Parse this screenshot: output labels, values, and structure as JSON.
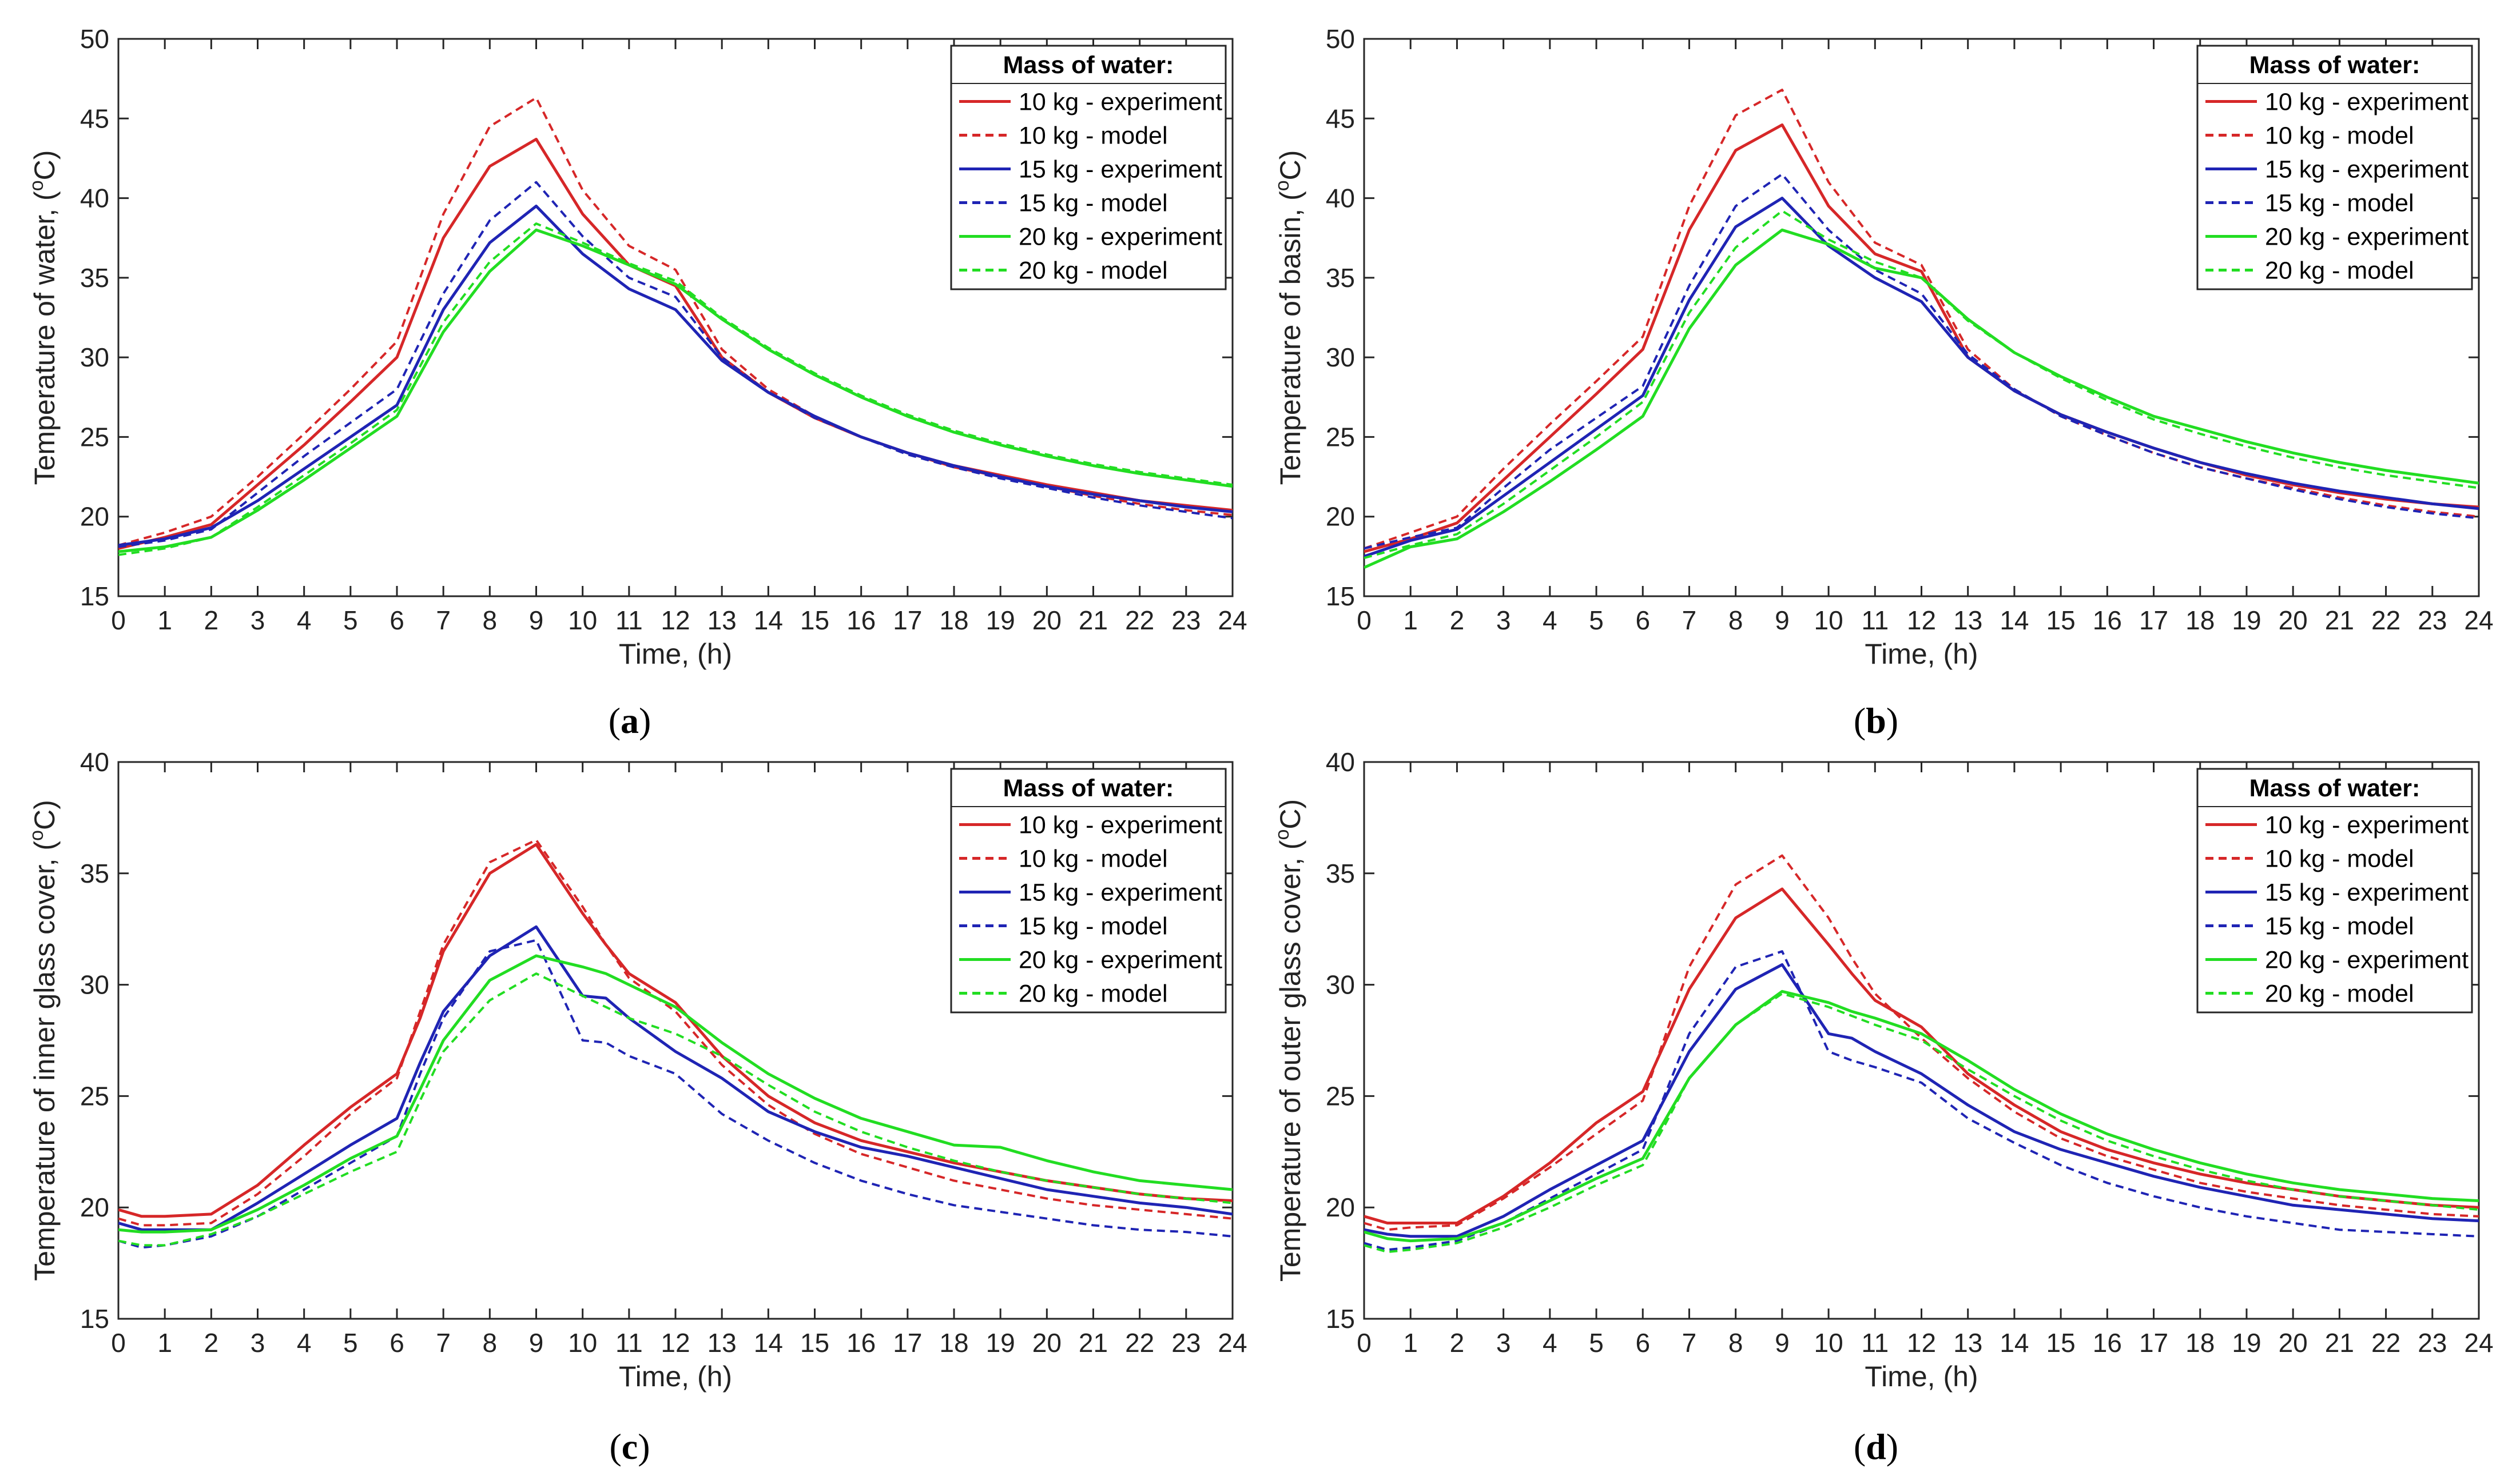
{
  "colors": {
    "red": "#d62728",
    "blue": "#1f24b4",
    "green": "#22dd22",
    "axis": "#262626",
    "grid": "#e0e0e0"
  },
  "chart_data": [
    {
      "id": "a",
      "type": "line",
      "caption_letter": "a",
      "title": "",
      "xlabel": "Time, (h)",
      "ylabel": "Temperature of water, (",
      "ylabel_sup": "o",
      "ylabel_unit": "C)",
      "xlim": [
        0,
        24
      ],
      "ylim": [
        15,
        50
      ],
      "xticks": [
        0,
        1,
        2,
        3,
        4,
        5,
        6,
        7,
        8,
        9,
        10,
        11,
        12,
        13,
        14,
        15,
        16,
        17,
        18,
        19,
        20,
        21,
        22,
        23,
        24
      ],
      "yticks": [
        15,
        20,
        25,
        30,
        35,
        40,
        45,
        50
      ],
      "legend_title": "Mass of water:",
      "x": [
        0,
        1,
        2,
        3,
        4,
        5,
        6,
        7,
        8,
        9,
        10,
        11,
        12,
        13,
        14,
        15,
        16,
        17,
        18,
        19,
        20,
        21,
        22,
        23,
        24
      ],
      "series": [
        {
          "name": "10 kg - experiment",
          "color": "red",
          "dash": false,
          "values": [
            18.0,
            18.7,
            19.5,
            22.0,
            24.5,
            27.2,
            30.0,
            37.5,
            42.0,
            43.7,
            39.0,
            35.8,
            34.5,
            30.0,
            27.8,
            26.2,
            25.0,
            24.0,
            23.2,
            22.6,
            22.0,
            21.5,
            21.0,
            20.7,
            20.4
          ]
        },
        {
          "name": "10 kg - model",
          "color": "red",
          "dash": true,
          "values": [
            18.2,
            19.0,
            20.0,
            22.5,
            25.2,
            28.0,
            31.0,
            39.0,
            44.5,
            46.3,
            40.5,
            37.0,
            35.5,
            30.5,
            28.0,
            26.3,
            25.0,
            24.0,
            23.1,
            22.5,
            21.9,
            21.3,
            20.8,
            20.4,
            20.1
          ]
        },
        {
          "name": "15 kg - experiment",
          "color": "blue",
          "dash": false,
          "values": [
            18.2,
            18.6,
            19.3,
            21.0,
            23.0,
            25.0,
            27.0,
            33.0,
            37.2,
            39.5,
            36.5,
            34.3,
            33.0,
            29.8,
            27.8,
            26.3,
            25.0,
            24.0,
            23.2,
            22.5,
            21.9,
            21.4,
            21.0,
            20.6,
            20.3
          ]
        },
        {
          "name": "15 kg - model",
          "color": "blue",
          "dash": true,
          "values": [
            18.1,
            18.5,
            19.2,
            21.5,
            23.8,
            25.9,
            28.0,
            34.0,
            38.6,
            41.0,
            37.6,
            35.0,
            33.8,
            30.0,
            27.8,
            26.2,
            25.0,
            23.9,
            23.1,
            22.4,
            21.8,
            21.2,
            20.7,
            20.3,
            19.9
          ]
        },
        {
          "name": "20 kg - experiment",
          "color": "green",
          "dash": false,
          "values": [
            17.8,
            18.1,
            18.7,
            20.4,
            22.3,
            24.3,
            26.3,
            31.6,
            35.4,
            38.0,
            37.0,
            35.8,
            34.6,
            32.4,
            30.5,
            28.9,
            27.5,
            26.3,
            25.3,
            24.5,
            23.8,
            23.2,
            22.7,
            22.3,
            21.9
          ]
        },
        {
          "name": "20 kg - model",
          "color": "green",
          "dash": true,
          "values": [
            17.6,
            18.0,
            18.7,
            20.6,
            22.6,
            24.6,
            26.7,
            32.2,
            36.0,
            38.4,
            37.2,
            35.9,
            34.8,
            32.5,
            30.6,
            29.0,
            27.6,
            26.4,
            25.4,
            24.6,
            23.9,
            23.3,
            22.8,
            22.4,
            22.0
          ]
        }
      ]
    },
    {
      "id": "b",
      "type": "line",
      "caption_letter": "b",
      "title": "",
      "xlabel": "Time, (h)",
      "ylabel": "Temperature of basin, (",
      "ylabel_sup": "o",
      "ylabel_unit": "C)",
      "xlim": [
        0,
        24
      ],
      "ylim": [
        15,
        50
      ],
      "xticks": [
        0,
        1,
        2,
        3,
        4,
        5,
        6,
        7,
        8,
        9,
        10,
        11,
        12,
        13,
        14,
        15,
        16,
        17,
        18,
        19,
        20,
        21,
        22,
        23,
        24
      ],
      "yticks": [
        15,
        20,
        25,
        30,
        35,
        40,
        45,
        50
      ],
      "legend_title": "Mass of water:",
      "x": [
        0,
        1,
        2,
        3,
        4,
        5,
        6,
        7,
        8,
        9,
        10,
        11,
        12,
        13,
        14,
        15,
        16,
        17,
        18,
        19,
        20,
        21,
        22,
        23,
        24
      ],
      "series": [
        {
          "name": "10 kg - experiment",
          "color": "red",
          "dash": false,
          "values": [
            17.8,
            18.6,
            19.6,
            22.3,
            25.0,
            27.7,
            30.5,
            38.0,
            43.0,
            44.6,
            39.5,
            36.5,
            35.4,
            30.0,
            27.9,
            26.4,
            25.3,
            24.3,
            23.4,
            22.6,
            22.0,
            21.5,
            21.1,
            20.8,
            20.6
          ]
        },
        {
          "name": "10 kg - model",
          "color": "red",
          "dash": true,
          "values": [
            18.0,
            19.0,
            20.0,
            23.0,
            25.8,
            28.5,
            31.3,
            39.5,
            45.2,
            46.8,
            41.0,
            37.2,
            35.8,
            30.5,
            28.0,
            26.3,
            25.1,
            24.0,
            23.1,
            22.4,
            21.8,
            21.2,
            20.7,
            20.3,
            20.0
          ]
        },
        {
          "name": "15 kg - experiment",
          "color": "blue",
          "dash": false,
          "values": [
            17.5,
            18.5,
            19.2,
            21.3,
            23.4,
            25.5,
            27.6,
            33.6,
            38.2,
            40.0,
            37.0,
            35.0,
            33.5,
            30.0,
            27.9,
            26.4,
            25.3,
            24.3,
            23.4,
            22.7,
            22.1,
            21.6,
            21.2,
            20.8,
            20.5
          ]
        },
        {
          "name": "15 kg - model",
          "color": "blue",
          "dash": true,
          "values": [
            18.0,
            18.7,
            19.3,
            21.8,
            24.2,
            26.2,
            28.2,
            34.5,
            39.5,
            41.5,
            38.0,
            35.5,
            34.0,
            30.2,
            28.0,
            26.3,
            25.1,
            24.0,
            23.1,
            22.4,
            21.7,
            21.1,
            20.6,
            20.2,
            19.9
          ]
        },
        {
          "name": "20 kg - experiment",
          "color": "green",
          "dash": false,
          "values": [
            16.8,
            18.1,
            18.6,
            20.3,
            22.2,
            24.2,
            26.3,
            31.8,
            35.8,
            38.0,
            37.1,
            35.6,
            35.0,
            32.4,
            30.3,
            28.8,
            27.5,
            26.3,
            25.5,
            24.7,
            24.0,
            23.4,
            22.9,
            22.5,
            22.1
          ]
        },
        {
          "name": "20 kg - model",
          "color": "green",
          "dash": true,
          "values": [
            17.4,
            18.2,
            18.9,
            20.8,
            22.9,
            25.0,
            27.2,
            32.8,
            36.9,
            39.2,
            37.4,
            36.0,
            35.0,
            32.3,
            30.3,
            28.7,
            27.3,
            26.1,
            25.2,
            24.4,
            23.7,
            23.1,
            22.6,
            22.2,
            21.8
          ]
        }
      ]
    },
    {
      "id": "c",
      "type": "line",
      "caption_letter": "c",
      "title": "",
      "xlabel": "Time, (h)",
      "ylabel": "Temperature of inner glass cover, (",
      "ylabel_sup": "o",
      "ylabel_unit": "C)",
      "xlim": [
        0,
        24
      ],
      "ylim": [
        15,
        40
      ],
      "xticks": [
        0,
        1,
        2,
        3,
        4,
        5,
        6,
        7,
        8,
        9,
        10,
        11,
        12,
        13,
        14,
        15,
        16,
        17,
        18,
        19,
        20,
        21,
        22,
        23,
        24
      ],
      "yticks": [
        15,
        20,
        25,
        30,
        35,
        40
      ],
      "legend_title": "Mass of water:",
      "x": [
        0,
        0.5,
        1,
        2,
        3,
        4,
        5,
        6,
        6.5,
        7,
        8,
        9,
        10,
        10.5,
        11,
        12,
        13,
        14,
        15,
        16,
        17,
        18,
        19,
        20,
        21,
        22,
        23,
        24
      ],
      "series": [
        {
          "name": "10 kg - experiment",
          "color": "red",
          "dash": false,
          "values": [
            19.9,
            19.6,
            19.6,
            19.7,
            21.0,
            22.8,
            24.5,
            26.0,
            28.5,
            31.5,
            35.0,
            36.3,
            33.2,
            31.8,
            30.5,
            29.2,
            26.8,
            25.0,
            23.8,
            23.0,
            22.5,
            22.0,
            21.6,
            21.2,
            20.9,
            20.6,
            20.4,
            20.3
          ]
        },
        {
          "name": "10 kg - model",
          "color": "red",
          "dash": true,
          "values": [
            19.5,
            19.2,
            19.2,
            19.3,
            20.6,
            22.3,
            24.2,
            25.8,
            28.8,
            31.8,
            35.5,
            36.5,
            33.5,
            31.8,
            30.3,
            28.8,
            26.4,
            24.6,
            23.3,
            22.4,
            21.8,
            21.2,
            20.8,
            20.4,
            20.1,
            19.9,
            19.7,
            19.5
          ]
        },
        {
          "name": "15 kg - experiment",
          "color": "blue",
          "dash": false,
          "values": [
            19.3,
            19.0,
            19.0,
            19.0,
            20.2,
            21.5,
            22.8,
            24.0,
            26.5,
            28.8,
            31.3,
            32.6,
            29.5,
            29.4,
            28.5,
            27.0,
            25.8,
            24.3,
            23.4,
            22.7,
            22.3,
            21.8,
            21.3,
            20.8,
            20.5,
            20.2,
            20.0,
            19.7
          ]
        },
        {
          "name": "15 kg - model",
          "color": "blue",
          "dash": true,
          "values": [
            18.5,
            18.2,
            18.3,
            18.7,
            19.6,
            20.8,
            22.0,
            23.2,
            26.0,
            28.5,
            31.5,
            32.0,
            27.5,
            27.4,
            26.8,
            26.0,
            24.2,
            23.0,
            22.0,
            21.2,
            20.6,
            20.1,
            19.8,
            19.5,
            19.2,
            19.0,
            18.9,
            18.7
          ]
        },
        {
          "name": "20 kg - experiment",
          "color": "green",
          "dash": false,
          "values": [
            19.0,
            18.9,
            18.9,
            19.0,
            19.9,
            21.0,
            22.2,
            23.2,
            25.3,
            27.5,
            30.2,
            31.3,
            30.8,
            30.5,
            30.0,
            29.0,
            27.4,
            26.0,
            24.9,
            24.0,
            23.4,
            22.8,
            22.7,
            22.1,
            21.6,
            21.2,
            21.0,
            20.8
          ]
        },
        {
          "name": "20 kg - model",
          "color": "green",
          "dash": true,
          "values": [
            18.5,
            18.3,
            18.3,
            18.8,
            19.6,
            20.6,
            21.6,
            22.5,
            24.8,
            27.0,
            29.3,
            30.5,
            29.5,
            29.0,
            28.5,
            27.8,
            26.8,
            25.5,
            24.3,
            23.4,
            22.7,
            22.1,
            21.6,
            21.2,
            20.9,
            20.6,
            20.4,
            20.2
          ]
        }
      ]
    },
    {
      "id": "d",
      "type": "line",
      "caption_letter": "d",
      "title": "",
      "xlabel": "Time, (h)",
      "ylabel": "Temperature of outer glass cover, (",
      "ylabel_sup": "o",
      "ylabel_unit": "C)",
      "xlim": [
        0,
        24
      ],
      "ylim": [
        15,
        40
      ],
      "xticks": [
        0,
        1,
        2,
        3,
        4,
        5,
        6,
        7,
        8,
        9,
        10,
        11,
        12,
        13,
        14,
        15,
        16,
        17,
        18,
        19,
        20,
        21,
        22,
        23,
        24
      ],
      "yticks": [
        15,
        20,
        25,
        30,
        35,
        40
      ],
      "legend_title": "Mass of water:",
      "x": [
        0,
        0.5,
        1,
        2,
        3,
        4,
        5,
        6,
        6.5,
        7,
        8,
        9,
        10,
        10.5,
        11,
        12,
        13,
        14,
        15,
        16,
        17,
        18,
        19,
        20,
        21,
        22,
        23,
        24
      ],
      "series": [
        {
          "name": "10 kg - experiment",
          "color": "red",
          "dash": false,
          "values": [
            19.6,
            19.3,
            19.3,
            19.3,
            20.5,
            22.0,
            23.8,
            25.2,
            27.5,
            29.8,
            33.0,
            34.3,
            31.8,
            30.5,
            29.3,
            28.1,
            26.0,
            24.6,
            23.4,
            22.6,
            22.0,
            21.5,
            21.1,
            20.8,
            20.5,
            20.3,
            20.1,
            20.0
          ]
        },
        {
          "name": "10 kg - model",
          "color": "red",
          "dash": true,
          "values": [
            19.3,
            19.0,
            19.1,
            19.2,
            20.4,
            21.8,
            23.3,
            24.8,
            27.8,
            30.8,
            34.5,
            35.8,
            33.0,
            31.2,
            29.6,
            27.6,
            25.8,
            24.3,
            23.1,
            22.3,
            21.7,
            21.1,
            20.7,
            20.4,
            20.1,
            19.9,
            19.7,
            19.6
          ]
        },
        {
          "name": "15 kg - experiment",
          "color": "blue",
          "dash": false,
          "values": [
            19.0,
            18.8,
            18.7,
            18.7,
            19.6,
            20.8,
            21.9,
            23.0,
            25.0,
            27.0,
            29.8,
            30.9,
            27.8,
            27.6,
            27.0,
            26.0,
            24.6,
            23.4,
            22.6,
            22.0,
            21.4,
            20.9,
            20.5,
            20.1,
            19.9,
            19.7,
            19.5,
            19.4
          ]
        },
        {
          "name": "15 kg - model",
          "color": "blue",
          "dash": true,
          "values": [
            18.4,
            18.1,
            18.2,
            18.5,
            19.3,
            20.4,
            21.5,
            22.6,
            25.2,
            27.8,
            30.8,
            31.5,
            27.0,
            26.6,
            26.3,
            25.6,
            24.0,
            22.9,
            21.9,
            21.1,
            20.5,
            20.0,
            19.6,
            19.3,
            19.0,
            18.9,
            18.8,
            18.7
          ]
        },
        {
          "name": "20 kg - experiment",
          "color": "green",
          "dash": false,
          "values": [
            18.9,
            18.6,
            18.5,
            18.6,
            19.3,
            20.3,
            21.3,
            22.2,
            24.0,
            25.8,
            28.2,
            29.7,
            29.2,
            28.8,
            28.5,
            27.8,
            26.6,
            25.3,
            24.2,
            23.3,
            22.6,
            22.0,
            21.5,
            21.1,
            20.8,
            20.6,
            20.4,
            20.3
          ]
        },
        {
          "name": "20 kg - model",
          "color": "green",
          "dash": true,
          "values": [
            18.3,
            18.0,
            18.1,
            18.4,
            19.1,
            20.0,
            21.0,
            21.9,
            23.8,
            25.8,
            28.2,
            29.6,
            29.0,
            28.6,
            28.2,
            27.5,
            26.2,
            25.0,
            23.9,
            23.0,
            22.3,
            21.7,
            21.2,
            20.8,
            20.5,
            20.3,
            20.1,
            19.9
          ]
        }
      ]
    }
  ]
}
